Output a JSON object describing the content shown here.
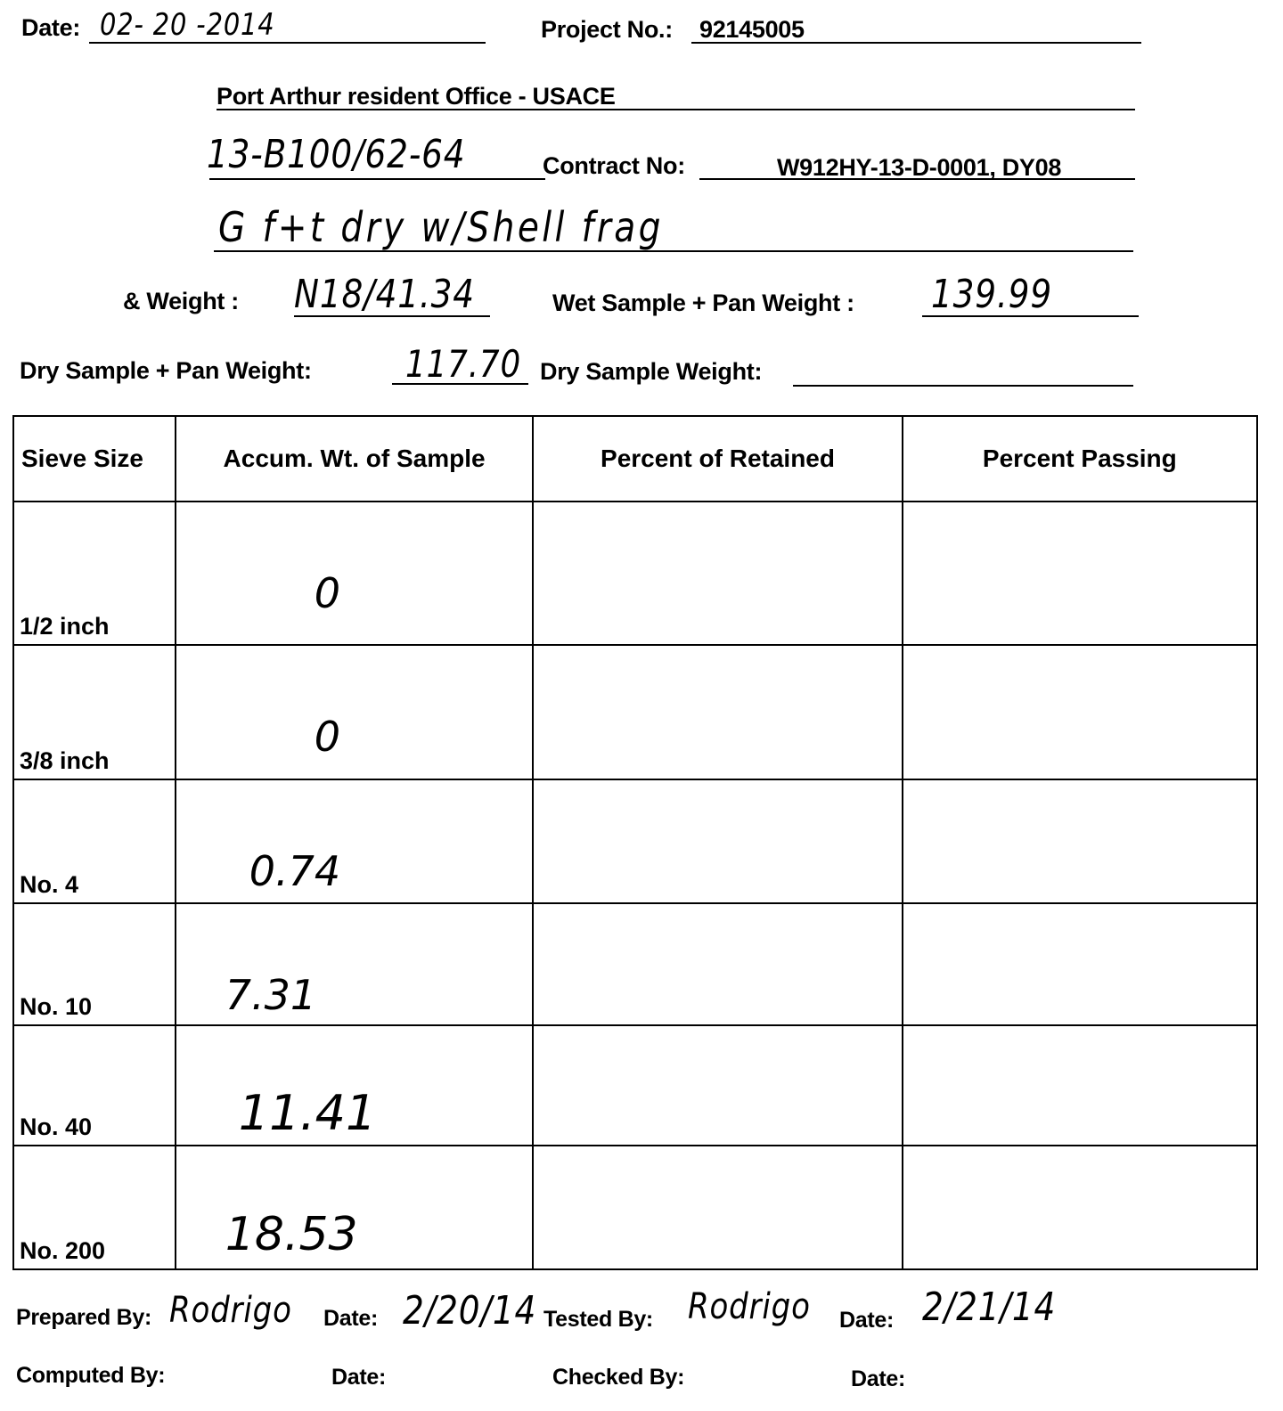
{
  "header": {
    "date_label": "Date:",
    "date_value": "02- 20 -2014",
    "project_label": "Project No.:",
    "project_value": "92145005",
    "office": "Port Arthur resident Office  -  USACE",
    "boring_value": "13-B100/62-64",
    "contract_label": "Contract No:",
    "contract_value": "W912HY-13-D-0001, DY08",
    "description_value": "G f+t dry w/Shell frag",
    "weight_label": "& Weight :",
    "weight_value": "N18/41.34",
    "wet_label": "Wet Sample + Pan Weight :",
    "wet_value": "139.99",
    "dry_pan_label": "Dry Sample + Pan Weight:",
    "dry_pan_value": "117.70",
    "dry_label": "Dry Sample Weight:",
    "dry_value": ""
  },
  "table": {
    "columns": [
      "Sieve Size",
      "Accum. Wt. of Sample",
      "Percent of Retained",
      "Percent Passing"
    ],
    "rows": [
      {
        "sieve": "1/2 inch",
        "accum": "0",
        "retained": "",
        "passing": ""
      },
      {
        "sieve": "3/8 inch",
        "accum": "0",
        "retained": "",
        "passing": ""
      },
      {
        "sieve": "No. 4",
        "accum": "0.74",
        "retained": "",
        "passing": ""
      },
      {
        "sieve": "No. 10",
        "accum": "7.31",
        "retained": "",
        "passing": ""
      },
      {
        "sieve": "No. 40",
        "accum": "11.41",
        "retained": "",
        "passing": ""
      },
      {
        "sieve": "No. 200",
        "accum": "18.53",
        "retained": "",
        "passing": ""
      }
    ]
  },
  "footer": {
    "prepared_label": "Prepared By:",
    "prepared_value": "Rodrigo",
    "date1_label": "Date:",
    "date1_value": "2/20/14",
    "tested_label": "Tested By:",
    "tested_value": "Rodrigo",
    "date2_label": "Date:",
    "date2_value": "2/21/14",
    "computed_label": "Computed By:",
    "date3_label": "Date:",
    "checked_label": "Checked By:",
    "date4_label": "Date:"
  }
}
